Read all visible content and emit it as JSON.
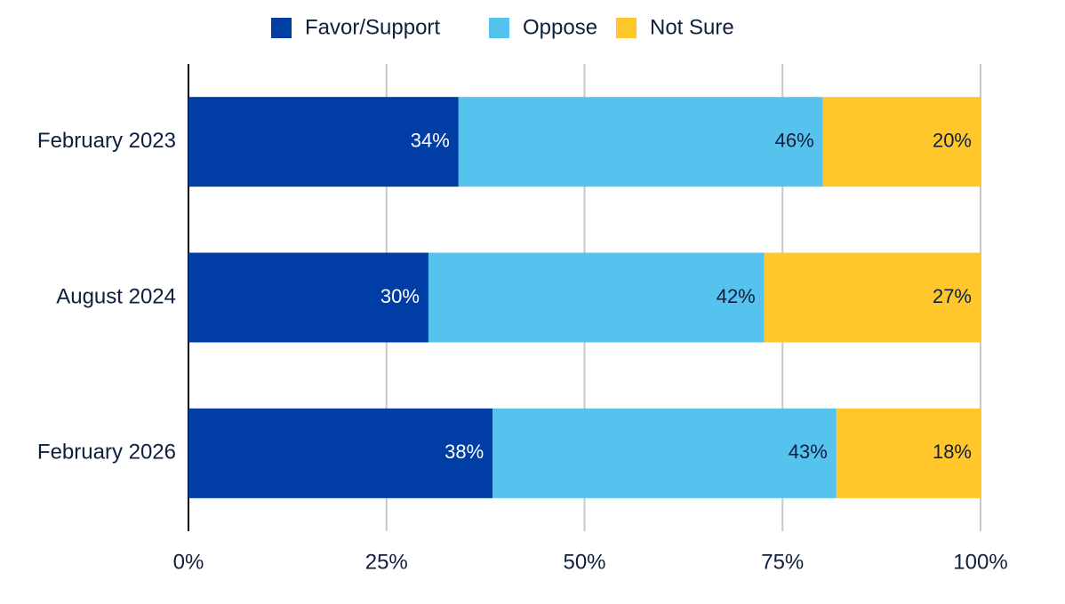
{
  "chart_data": {
    "type": "bar",
    "orientation": "horizontal",
    "stacked": true,
    "categories": [
      "February 2023",
      "August 2024",
      "February 2026"
    ],
    "series": [
      {
        "name": "Favor/Support",
        "color": "#003da5",
        "values": [
          34.1,
          30.3,
          38.4
        ],
        "value_labels": [
          "34%",
          "30%",
          "38%"
        ]
      },
      {
        "name": "Oppose",
        "color": "#56c3ee",
        "values": [
          46.0,
          42.4,
          43.4
        ],
        "value_labels": [
          "46%",
          "42%",
          "43%"
        ]
      },
      {
        "name": "Not Sure",
        "color": "#ffc72c",
        "values": [
          19.9,
          27.3,
          18.2
        ],
        "value_labels": [
          "20%",
          "27%",
          "18%"
        ]
      }
    ],
    "xlim": [
      0,
      100
    ],
    "xticks": [
      {
        "value": 0,
        "label": "0%"
      },
      {
        "value": 25,
        "label": "25%"
      },
      {
        "value": 50,
        "label": "50%"
      },
      {
        "value": 75,
        "label": "75%"
      },
      {
        "value": 100,
        "label": "100%"
      }
    ],
    "grid": true,
    "legend": "top"
  }
}
